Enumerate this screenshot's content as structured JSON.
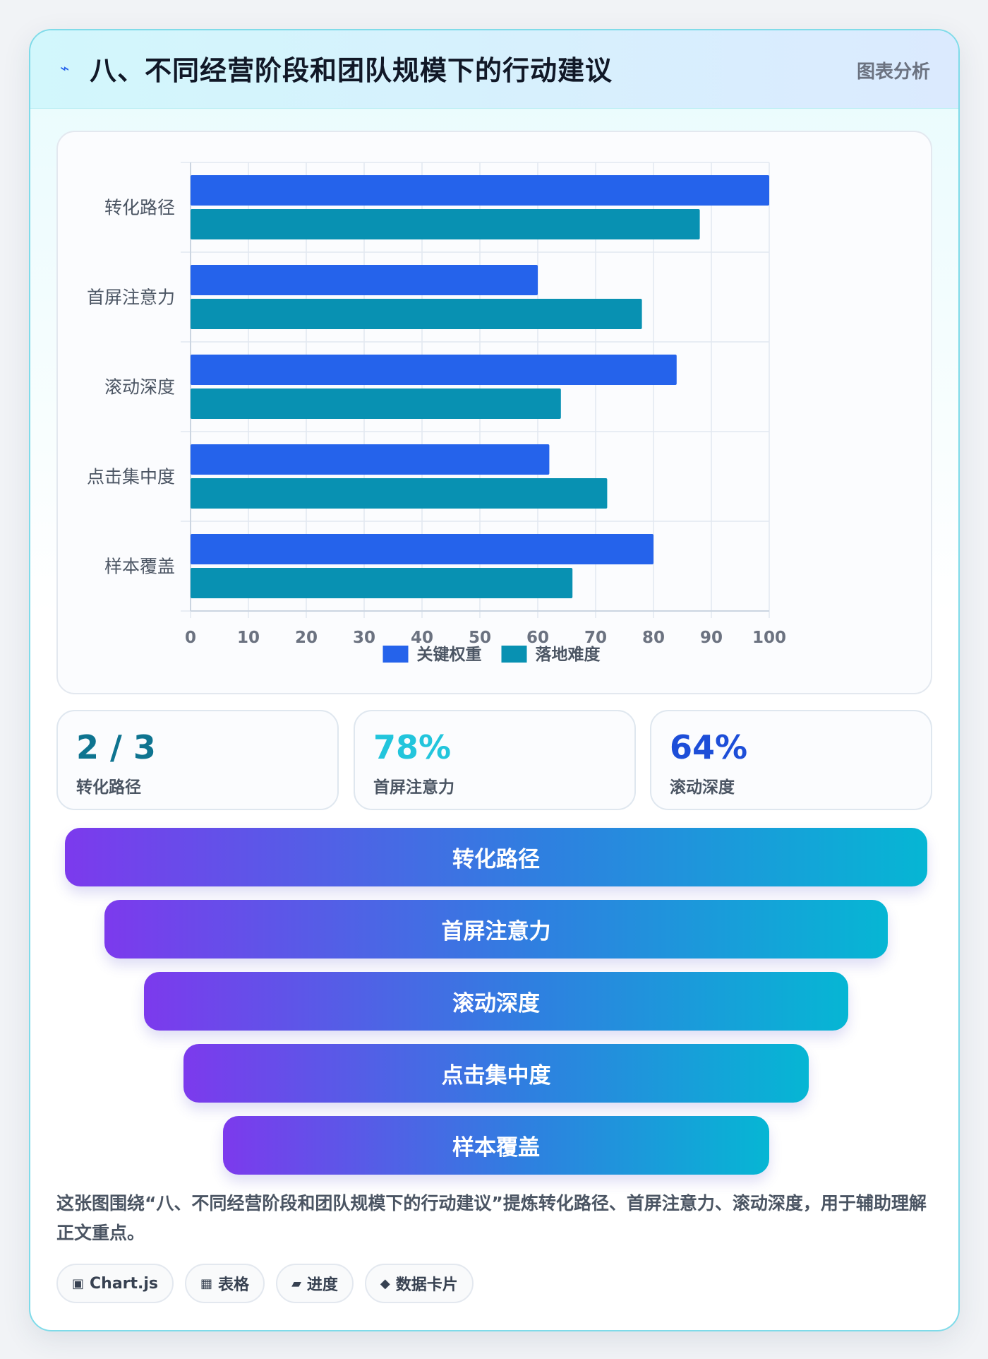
{
  "header": {
    "icon": "lightning-icon",
    "icon_glyph": "⌁",
    "title": "八、不同经营阶段和团队规模下的行动建议",
    "tag": "图表分析"
  },
  "chart_data": {
    "type": "bar",
    "orientation": "horizontal",
    "categories": [
      "转化路径",
      "首屏注意力",
      "滚动深度",
      "点击集中度",
      "样本覆盖"
    ],
    "series": [
      {
        "name": "关键权重",
        "color": "#2563eb",
        "values": [
          100,
          60,
          84,
          62,
          80
        ]
      },
      {
        "name": "落地难度",
        "color": "#0891b2",
        "values": [
          88,
          78,
          64,
          72,
          66
        ]
      }
    ],
    "xlim": [
      0,
      100
    ],
    "xticks": [
      0,
      10,
      20,
      30,
      40,
      50,
      60,
      70,
      80,
      90,
      100
    ],
    "grid": true,
    "legend": "bottom"
  },
  "stats": [
    {
      "value": "2 / 3",
      "label": "转化路径",
      "color": "#0e7490"
    },
    {
      "value": "78%",
      "label": "首屏注意力",
      "color": "#22c5dc"
    },
    {
      "value": "64%",
      "label": "滚动深度",
      "color": "#1d4ed8"
    }
  ],
  "funnel": [
    "转化路径",
    "首屏注意力",
    "滚动深度",
    "点击集中度",
    "样本覆盖"
  ],
  "description": "这张图围绕“八、不同经营阶段和团队规模下的行动建议”提炼转化路径、首屏注意力、滚动深度，用于辅助理解正文重点。",
  "chips": [
    {
      "icon": "chart-icon",
      "glyph": "▣",
      "label": "Chart.js"
    },
    {
      "icon": "table-icon",
      "glyph": "▦",
      "label": "表格"
    },
    {
      "icon": "progress-icon",
      "glyph": "▰",
      "label": "进度"
    },
    {
      "icon": "diamond-icon",
      "glyph": "◆",
      "label": "数据卡片"
    }
  ]
}
